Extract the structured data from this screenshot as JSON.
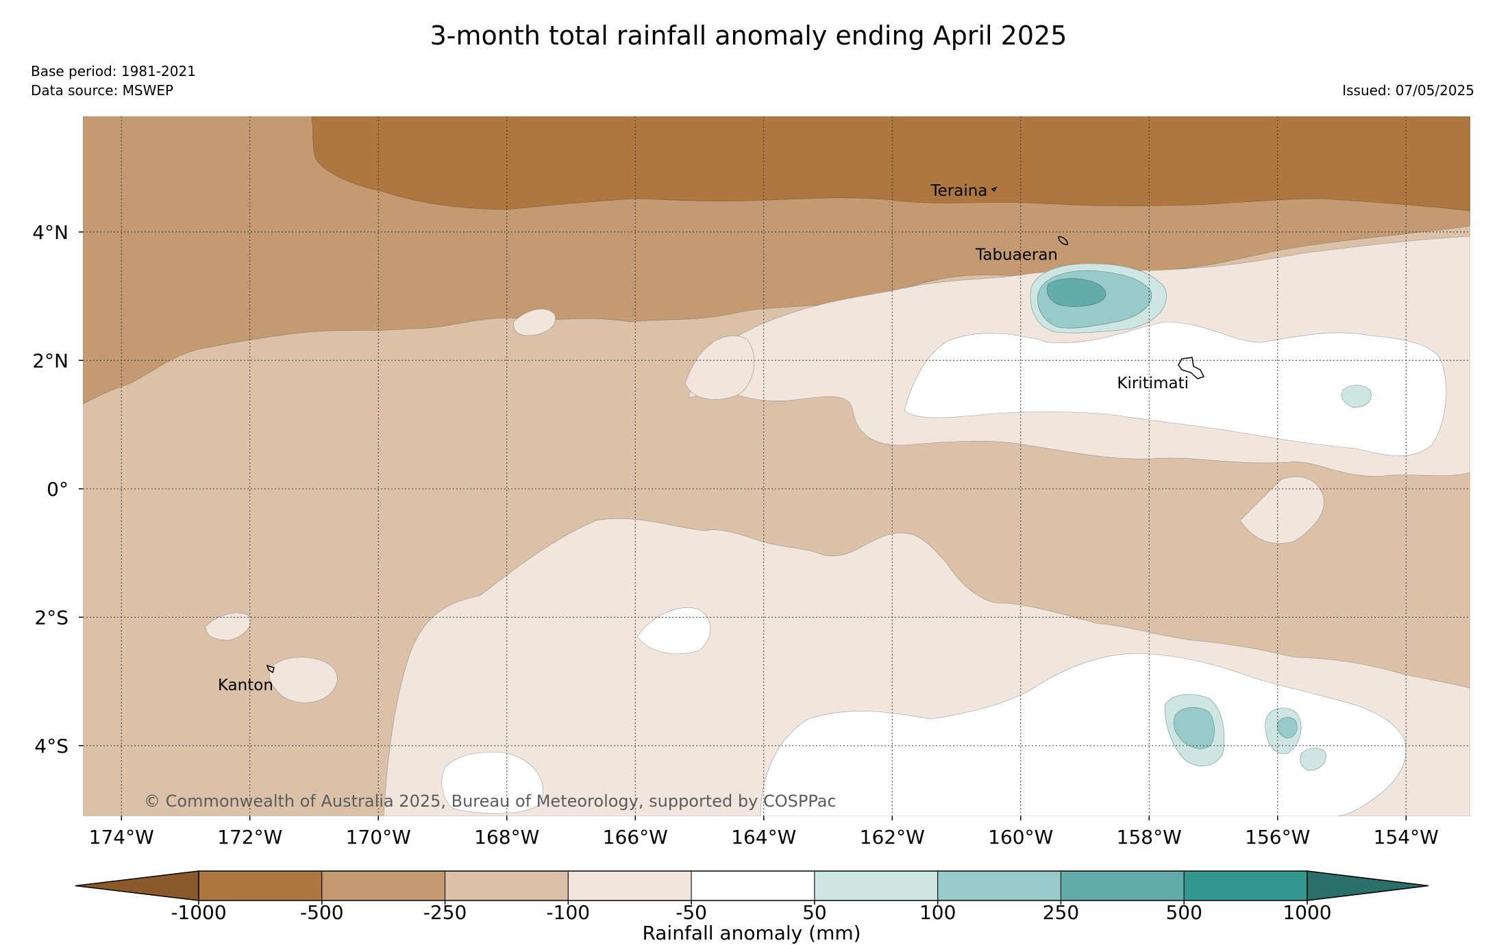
{
  "title": "3-month total rainfall anomaly ending April 2025",
  "base_period": "Base period: 1981-2021",
  "data_source": "Data source: MSWEP",
  "issued": "Issued: 07/05/2025",
  "copyright": "© Commonwealth of Australia 2025, Bureau of Meteorology, supported by COSPPac",
  "map": {
    "lon_range": [
      -174.6,
      -153.0
    ],
    "lat_range": [
      -5.1,
      5.8
    ],
    "lon_ticks": [
      {
        "value": -174,
        "label": "174°W"
      },
      {
        "value": -172,
        "label": "172°W"
      },
      {
        "value": -170,
        "label": "170°W"
      },
      {
        "value": -168,
        "label": "168°W"
      },
      {
        "value": -166,
        "label": "166°W"
      },
      {
        "value": -164,
        "label": "164°W"
      },
      {
        "value": -162,
        "label": "162°W"
      },
      {
        "value": -160,
        "label": "160°W"
      },
      {
        "value": -158,
        "label": "158°W"
      },
      {
        "value": -156,
        "label": "156°W"
      },
      {
        "value": -154,
        "label": "154°W"
      }
    ],
    "lat_ticks": [
      {
        "value": 4,
        "label": "4°N"
      },
      {
        "value": 2,
        "label": "2°N"
      },
      {
        "value": 0,
        "label": "0°"
      },
      {
        "value": -2,
        "label": "2°S"
      },
      {
        "value": -4,
        "label": "4°S"
      }
    ],
    "places": [
      {
        "name": "Teraina",
        "lon": -161.4,
        "lat": 4.65
      },
      {
        "name": "Tabuaeran",
        "lon": -160.7,
        "lat": 3.65
      },
      {
        "name": "Kiritimati",
        "lon": -158.5,
        "lat": 1.65
      },
      {
        "name": "Kanton",
        "lon": -172.5,
        "lat": -3.05
      }
    ]
  },
  "colorbar": {
    "label": "Rainfall anomaly (mm)",
    "ticks": [
      "-1000",
      "-500",
      "-250",
      "-100",
      "-50",
      "50",
      "100",
      "250",
      "500",
      "1000"
    ],
    "colors": {
      "lt_-1000": "#8a5a2b",
      "-1000_-500": "#ad773f",
      "-500_-250": "#c49a72",
      "-250_-100": "#dbc1a8",
      "-100_-50": "#f1e6dd",
      "-50_50": "#ffffff",
      "50_100": "#cde5e3",
      "100_250": "#98cac9",
      "250_500": "#62adab",
      "500_1000": "#33978f",
      "gt_1000": "#2a6f6a"
    }
  }
}
